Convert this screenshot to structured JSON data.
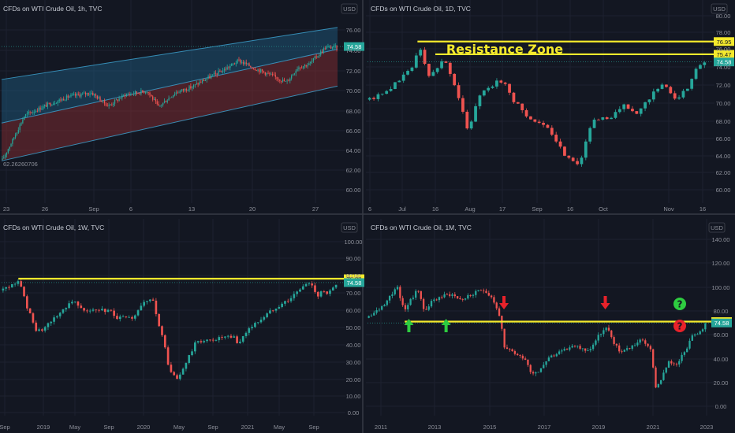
{
  "colors": {
    "background": "#131722",
    "up": "#26a69a",
    "down": "#ef5350",
    "grid": "#1e2230",
    "divider": "#363a45",
    "level": "#f5ea2c",
    "tag_text": "#131722",
    "current_tag": "#26a69a",
    "channel_fill_top": "#1f5f86",
    "channel_fill_bottom": "#7a2a30",
    "channel_line": "#3fa7d6"
  },
  "chart_data": [
    {
      "id": "p1",
      "type": "candlestick",
      "title": "CFDs on WTI Crude Oil, 1h, TVC",
      "currency": "USD",
      "x_ticks": [
        "23",
        "26",
        "Sep",
        "6",
        "13",
        "20",
        "27"
      ],
      "y_ticks": [
        "76.00",
        "74.00",
        "72.00",
        "70.00",
        "68.00",
        "66.00",
        "64.00",
        "62.00",
        "60.00"
      ],
      "ylim": [
        58.7,
        77.5
      ],
      "n_bars": 230,
      "path": [
        [
          0,
          62.6
        ],
        [
          8,
          64.4
        ],
        [
          20,
          67.3
        ],
        [
          40,
          68.4
        ],
        [
          60,
          69.3
        ],
        [
          80,
          69.7
        ],
        [
          95,
          68.3
        ],
        [
          110,
          69.5
        ],
        [
          130,
          69.9
        ],
        [
          140,
          68.2
        ],
        [
          155,
          69.7
        ],
        [
          170,
          70.3
        ],
        [
          185,
          71.3
        ],
        [
          200,
          72.2
        ],
        [
          212,
          73.1
        ],
        [
          224,
          72.4
        ],
        [
          240,
          71.6
        ],
        [
          255,
          70.8
        ],
        [
          265,
          72.4
        ],
        [
          275,
          72.7
        ],
        [
          290,
          74.5
        ],
        [
          300,
          74.5
        ]
      ],
      "current_price": "74.58",
      "channel": {
        "start": 0,
        "end": 300,
        "upper": [
          71.1,
          76.6
        ],
        "middle": [
          66.5,
          74.3
        ],
        "lower": [
          62.5,
          70.4
        ]
      },
      "annotation": "62.26260706"
    },
    {
      "id": "p2",
      "type": "candlestick",
      "title": "CFDs on WTI Crude Oil, 1D, TVC",
      "currency": "USD",
      "x_ticks": [
        "6",
        "Jul",
        "16",
        "Aug",
        "17",
        "Sep",
        "16",
        "Oct",
        "Nov",
        "16"
      ],
      "y_ticks": [
        "80.00",
        "78.00",
        "76.00",
        "74.00",
        "72.00",
        "70.00",
        "68.00",
        "66.00",
        "64.00",
        "62.00",
        "60.00"
      ],
      "ylim": [
        58.9,
        80.5
      ],
      "n_bars": 80,
      "path": [
        [
          0,
          70.2
        ],
        [
          4,
          71.0
        ],
        [
          8,
          72.3
        ],
        [
          12,
          74.0
        ],
        [
          14,
          76.4
        ],
        [
          17,
          72.7
        ],
        [
          21,
          75.1
        ],
        [
          24,
          72.0
        ],
        [
          28,
          66.5
        ],
        [
          31,
          70.8
        ],
        [
          36,
          72.2
        ],
        [
          38,
          72.3
        ],
        [
          41,
          70.0
        ],
        [
          45,
          68.2
        ],
        [
          50,
          67.0
        ],
        [
          55,
          64.0
        ],
        [
          59,
          62.7
        ],
        [
          60,
          63.5
        ],
        [
          63,
          67.6
        ],
        [
          68,
          68.1
        ],
        [
          72,
          69.5
        ],
        [
          76,
          68.5
        ],
        [
          80,
          70.8
        ],
        [
          83,
          71.8
        ],
        [
          85,
          71.3
        ],
        [
          87,
          70.3
        ],
        [
          91,
          72.0
        ],
        [
          93,
          74.3
        ],
        [
          95,
          74.6
        ]
      ],
      "current_price": "74.58",
      "levels": [
        {
          "value": 76.95,
          "label": "76.95",
          "from": 14
        },
        {
          "value": 75.47,
          "label": "75.47",
          "from": 19
        }
      ],
      "annotation": "Resistance Zone"
    },
    {
      "id": "p3",
      "type": "candlestick",
      "title": "CFDs on WTI Crude Oil, 1W, TVC",
      "currency": "USD",
      "x_ticks": [
        "Sep",
        "2019",
        "May",
        "Sep",
        "2020",
        "May",
        "Sep",
        "2021",
        "May",
        "Sep"
      ],
      "y_ticks": [
        "100.00",
        "90.00",
        "80.00",
        "70.00",
        "60.00",
        "50.00",
        "40.00",
        "30.00",
        "20.00",
        "10.00",
        "0.00"
      ],
      "ylim": [
        -4,
        102
      ],
      "n_bars": 112,
      "path": [
        [
          0,
          70
        ],
        [
          5,
          74
        ],
        [
          8,
          75
        ],
        [
          11,
          62
        ],
        [
          16,
          46
        ],
        [
          19,
          46
        ],
        [
          25,
          54
        ],
        [
          33,
          64
        ],
        [
          35,
          63
        ],
        [
          40,
          58
        ],
        [
          45,
          58
        ],
        [
          51,
          58
        ],
        [
          55,
          54
        ],
        [
          62,
          53
        ],
        [
          67,
          62
        ],
        [
          72,
          64
        ],
        [
          78,
          35
        ],
        [
          80,
          22
        ],
        [
          84,
          17
        ],
        [
          87,
          25
        ],
        [
          93,
          40
        ],
        [
          98,
          40
        ],
        [
          105,
          42
        ],
        [
          111,
          42
        ],
        [
          113,
          38
        ],
        [
          117,
          46
        ],
        [
          123,
          52
        ],
        [
          131,
          60
        ],
        [
          138,
          65
        ],
        [
          143,
          71
        ],
        [
          146,
          74
        ],
        [
          149,
          73
        ],
        [
          151,
          66
        ],
        [
          153,
          70
        ],
        [
          156,
          67
        ],
        [
          160,
          74
        ]
      ],
      "current_price": "74.58",
      "levels": [
        {
          "value": 76.88,
          "label": "76.88",
          "from": 8
        }
      ]
    },
    {
      "id": "p4",
      "type": "candlestick",
      "title": "CFDs on WTI Crude Oil, 1M, TVC",
      "currency": "USD",
      "x_ticks": [
        "2011",
        "2013",
        "2015",
        "2017",
        "2019",
        "2021",
        "2023"
      ],
      "y_ticks": [
        "140.00",
        "120.00",
        "100.00",
        "80.00",
        "60.00",
        "40.00",
        "20.00",
        "0.00"
      ],
      "ylim": [
        -6,
        150
      ],
      "n_bars": 130,
      "path": [
        [
          0,
          79
        ],
        [
          4,
          85
        ],
        [
          7,
          90
        ],
        [
          10,
          98
        ],
        [
          14,
          106
        ],
        [
          17,
          86
        ],
        [
          22,
          98
        ],
        [
          24,
          104
        ],
        [
          27,
          85
        ],
        [
          30,
          92
        ],
        [
          34,
          97
        ],
        [
          40,
          100
        ],
        [
          45,
          95
        ],
        [
          50,
          99
        ],
        [
          56,
          104
        ],
        [
          60,
          97
        ],
        [
          64,
          80
        ],
        [
          66,
          52
        ],
        [
          70,
          50
        ],
        [
          73,
          46
        ],
        [
          76,
          45
        ],
        [
          79,
          32
        ],
        [
          83,
          33
        ],
        [
          87,
          44
        ],
        [
          94,
          49
        ],
        [
          98,
          54
        ],
        [
          102,
          54
        ],
        [
          107,
          50
        ],
        [
          113,
          66
        ],
        [
          116,
          70
        ],
        [
          120,
          56
        ],
        [
          122,
          50
        ],
        [
          127,
          53
        ],
        [
          133,
          60
        ],
        [
          137,
          54
        ],
        [
          140,
          18
        ],
        [
          143,
          28
        ],
        [
          146,
          40
        ],
        [
          150,
          40
        ],
        [
          154,
          48
        ],
        [
          158,
          64
        ],
        [
          162,
          66
        ],
        [
          164,
          74
        ]
      ],
      "current_price": "74.58",
      "levels": [
        {
          "value": 75.76,
          "label": "75.76",
          "from": 18
        }
      ],
      "annotations": [
        {
          "kind": "up-arrow",
          "bar": 20
        },
        {
          "kind": "up-arrow",
          "bar": 38
        },
        {
          "kind": "down-arrow",
          "bar": 66
        },
        {
          "kind": "down-arrow",
          "bar": 115
        },
        {
          "kind": "question-green",
          "label": "?"
        },
        {
          "kind": "question-red",
          "label": "?"
        }
      ]
    }
  ]
}
